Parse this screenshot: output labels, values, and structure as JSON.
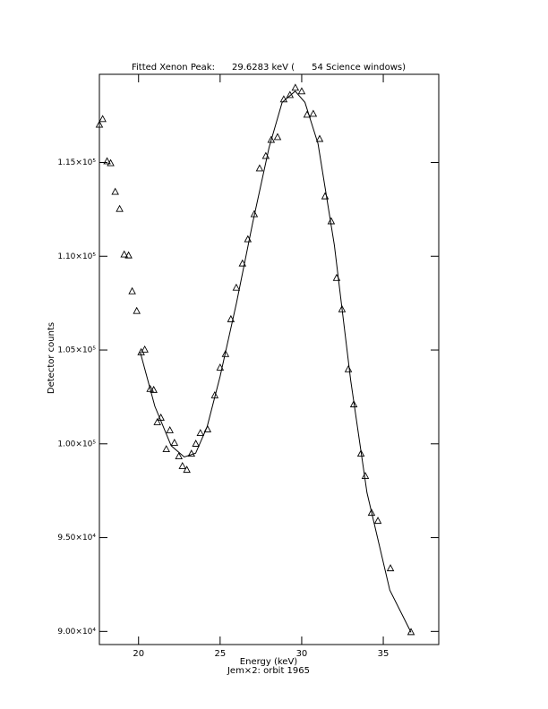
{
  "chart_data": {
    "type": "scatter",
    "title": "Fitted Xenon Peak:      29.6283 keV (      54 Science windows)",
    "xlabel": "Energy (keV)",
    "subtitle": "Jem×2: orbit 1965",
    "ylabel": "Detector counts",
    "xlim": [
      17.6,
      38.4
    ],
    "ylim": [
      89300,
      119700
    ],
    "xticks": [
      20,
      25,
      30,
      35
    ],
    "yticks": [
      {
        "value": 90000,
        "label": "9.00×10⁴"
      },
      {
        "value": 95000,
        "label": "9.50×10⁴"
      },
      {
        "value": 100000,
        "label": "1.00×10⁵"
      },
      {
        "value": 105000,
        "label": "1.05×10⁵"
      },
      {
        "value": 110000,
        "label": "1.10×10⁵"
      },
      {
        "value": 115000,
        "label": "1.15×10⁵"
      }
    ],
    "series": [
      {
        "type": "scatter",
        "color": "#000000",
        "x": [
          17.6,
          17.8,
          18.07,
          18.29,
          18.57,
          18.84,
          19.12,
          19.39,
          19.61,
          19.89,
          20.16,
          20.38,
          20.71,
          20.93,
          21.15,
          21.37,
          21.7,
          21.92,
          22.2,
          22.47,
          22.69,
          22.96,
          23.24,
          23.51,
          23.79,
          24.23,
          24.67,
          25.0,
          25.33,
          25.66,
          25.99,
          26.37,
          26.7,
          27.09,
          27.42,
          27.8,
          28.13,
          28.52,
          28.9,
          29.28,
          29.61,
          30.0,
          30.33,
          30.71,
          31.1,
          31.43,
          31.81,
          32.14,
          32.47,
          32.86,
          33.19,
          33.63,
          33.9,
          34.28,
          34.67,
          35.44,
          36.7
        ],
        "values": [
          117000,
          117300,
          115050,
          114950,
          113420,
          112510,
          110080,
          110030,
          108120,
          107070,
          104870,
          105010,
          102910,
          102860,
          101140,
          101380,
          99700,
          100710,
          100040,
          99320,
          98800,
          98600,
          99460,
          99990,
          100560,
          100760,
          102570,
          104050,
          104770,
          106630,
          108310,
          109600,
          110890,
          112230,
          114670,
          115330,
          116190,
          116340,
          118350,
          118580,
          118970,
          118780,
          117530,
          117580,
          116240,
          113180,
          111850,
          108830,
          107160,
          103960,
          102090,
          99460,
          98270,
          96310,
          95880,
          93350,
          89950
        ]
      },
      {
        "type": "line",
        "color": "#000000",
        "x": [
          20.1,
          21,
          22,
          22.8,
          23.5,
          24.2,
          25,
          26,
          27,
          28,
          28.8,
          29.6,
          30.2,
          31,
          32,
          33,
          34,
          35.4,
          36.7
        ],
        "values": [
          104900,
          102000,
          99900,
          99300,
          99500,
          100900,
          103600,
          107500,
          111800,
          115800,
          118200,
          118800,
          118200,
          116000,
          110600,
          103400,
          97400,
          92200,
          89950
        ]
      }
    ]
  }
}
